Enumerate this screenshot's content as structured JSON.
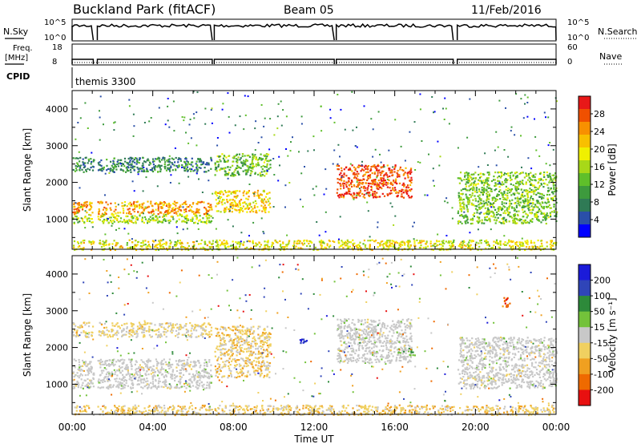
{
  "header": {
    "station": "Buckland Park (fitACF)",
    "beam": "Beam 05",
    "date": "11/Feb/2016"
  },
  "sky_panel": {
    "left_label": "N.Sky",
    "right_label": "N.Search",
    "left_ticks": [
      "10^5",
      "10^0"
    ],
    "right_ticks": [
      "10^5",
      "10^0"
    ]
  },
  "freq_panel": {
    "left_label_1": "Freq.",
    "left_label_2": "[MHz]",
    "right_label": "Nave",
    "left_ticks": [
      "18",
      "8"
    ],
    "right_ticks": [
      "60",
      "0"
    ]
  },
  "cpid": {
    "label": "CPID",
    "value": "themis 3300"
  },
  "x_axis": {
    "label": "Time UT",
    "ticks": [
      "00:00",
      "04:00",
      "08:00",
      "12:00",
      "16:00",
      "20:00",
      "00:00"
    ],
    "tick_hours": [
      0,
      4,
      8,
      12,
      16,
      20,
      24
    ]
  },
  "colors": {
    "power": [
      "#0000ff",
      "#2a4fa8",
      "#2f7a55",
      "#3d9a3d",
      "#5fbf2a",
      "#a8d818",
      "#f0f000",
      "#f8c000",
      "#f89000",
      "#f05000",
      "#e81818"
    ],
    "velocity": [
      "#1b1bd9",
      "#2f45b8",
      "#2d8a3a",
      "#73c23a",
      "#c8c8c8",
      "#f0d060",
      "#f0a020",
      "#ef6a00",
      "#e81010"
    ],
    "ground_scatter": "#c8c8c8"
  },
  "chart_data": [
    {
      "type": "heatmap",
      "panel": "power",
      "ylabel": "Slant Range [km]",
      "ylim": [
        180,
        4500
      ],
      "yticks": [
        "1000",
        "2000",
        "3000",
        "4000"
      ],
      "xlim_hours": [
        0,
        24
      ],
      "colorbar": {
        "label": "Power [dB]",
        "ticks": [
          "4",
          "8",
          "12",
          "16",
          "20",
          "24",
          "28"
        ],
        "range": [
          0,
          30
        ]
      },
      "data_gaps_hours": [
        [
          1.05,
          1.25
        ],
        [
          6.95,
          7.05
        ],
        [
          13.0,
          13.1
        ],
        [
          18.9,
          19.1
        ]
      ],
      "regions": [
        {
          "t": [
            0,
            6.9
          ],
          "range_km": [
            1150,
            1500
          ],
          "power_db": 23
        },
        {
          "t": [
            0,
            6.9
          ],
          "range_km": [
            900,
            1150
          ],
          "power_db": 15
        },
        {
          "t": [
            0,
            6.9
          ],
          "range_km": [
            2300,
            2700
          ],
          "power_db": 7
        },
        {
          "t": [
            7.0,
            9.8
          ],
          "range_km": [
            1200,
            1800
          ],
          "power_db": 20
        },
        {
          "t": [
            7.0,
            9.8
          ],
          "range_km": [
            2200,
            2800
          ],
          "power_db": 12
        },
        {
          "t": [
            13.1,
            16.8
          ],
          "range_km": [
            1600,
            2500
          ],
          "power_db": 27
        },
        {
          "t": [
            19.1,
            24.0
          ],
          "range_km": [
            900,
            2300
          ],
          "power_db": 13
        },
        {
          "t": [
            0,
            24
          ],
          "range_km": [
            180,
            450
          ],
          "power_db": 18
        }
      ]
    },
    {
      "type": "heatmap",
      "panel": "velocity",
      "ylabel": "Slant Range [km]",
      "ylim": [
        180,
        4500
      ],
      "yticks": [
        "1000",
        "2000",
        "3000",
        "4000"
      ],
      "xlim_hours": [
        0,
        24
      ],
      "colorbar": {
        "label": "Velocity [m s⁻¹]",
        "ticks": [
          "200",
          "100",
          "50",
          "15",
          "-15",
          "-50",
          "-100",
          "-200"
        ],
        "range": [
          -250,
          250
        ]
      },
      "data_gaps_hours": [
        [
          1.05,
          1.25
        ],
        [
          6.95,
          7.05
        ],
        [
          13.0,
          13.1
        ],
        [
          18.9,
          19.1
        ]
      ],
      "regions": [
        {
          "t": [
            0,
            6.9
          ],
          "range_km": [
            900,
            1700
          ],
          "velocity": 0,
          "ground_scatter": true
        },
        {
          "t": [
            0,
            6.9
          ],
          "range_km": [
            2300,
            2700
          ],
          "velocity": -40
        },
        {
          "t": [
            7.0,
            9.8
          ],
          "range_km": [
            1200,
            2600
          ],
          "velocity": -60
        },
        {
          "t": [
            11.2,
            11.6
          ],
          "range_km": [
            2100,
            2300
          ],
          "velocity": 220
        },
        {
          "t": [
            13.1,
            16.8
          ],
          "range_km": [
            1600,
            2800
          ],
          "velocity": 0,
          "ground_scatter": true
        },
        {
          "t": [
            16.0,
            17.0
          ],
          "range_km": [
            1800,
            2000
          ],
          "velocity": 60
        },
        {
          "t": [
            19.1,
            24.0
          ],
          "range_km": [
            900,
            2300
          ],
          "velocity": 0,
          "ground_scatter": true
        },
        {
          "t": [
            21.3,
            21.7
          ],
          "range_km": [
            3100,
            3400
          ],
          "velocity": -200
        },
        {
          "t": [
            0,
            24
          ],
          "range_km": [
            180,
            450
          ],
          "velocity": -60
        }
      ]
    }
  ]
}
